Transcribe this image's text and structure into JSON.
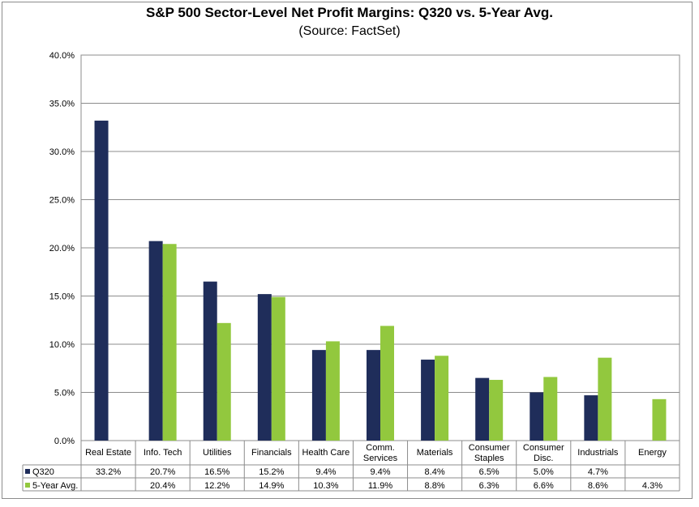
{
  "chart_data": {
    "type": "bar",
    "title": "S&P 500 Sector-Level Net Profit Margins: Q320 vs. 5-Year Avg.",
    "subtitle": "(Source: FactSet)",
    "categories": [
      [
        "Real Estate"
      ],
      [
        "Info. Tech"
      ],
      [
        "Utilities"
      ],
      [
        "Financials"
      ],
      [
        "Health Care"
      ],
      [
        "Comm.",
        "Services"
      ],
      [
        "Materials"
      ],
      [
        "Consumer",
        "Staples"
      ],
      [
        "Consumer",
        "Disc."
      ],
      [
        "Industrials"
      ],
      [
        "Energy"
      ]
    ],
    "series": [
      {
        "name": "Q320",
        "color": "#1f2d5a",
        "values": [
          33.2,
          20.7,
          16.5,
          15.2,
          9.4,
          9.4,
          8.4,
          6.5,
          5.0,
          4.7,
          null
        ],
        "labels": [
          "33.2%",
          "20.7%",
          "16.5%",
          "15.2%",
          "9.4%",
          "9.4%",
          "8.4%",
          "6.5%",
          "5.0%",
          "4.7%",
          ""
        ]
      },
      {
        "name": "5-Year Avg.",
        "color": "#92c83e",
        "values": [
          null,
          20.4,
          12.2,
          14.9,
          10.3,
          11.9,
          8.8,
          6.3,
          6.6,
          8.6,
          4.3
        ],
        "labels": [
          "",
          "20.4%",
          "12.2%",
          "14.9%",
          "10.3%",
          "11.9%",
          "8.8%",
          "6.3%",
          "6.6%",
          "8.6%",
          "4.3%"
        ]
      }
    ],
    "ylim": [
      0,
      40
    ],
    "yticks": [
      "0.0%",
      "5.0%",
      "10.0%",
      "15.0%",
      "20.0%",
      "25.0%",
      "30.0%",
      "35.0%",
      "40.0%"
    ],
    "grid": true,
    "legend": "data-table"
  }
}
